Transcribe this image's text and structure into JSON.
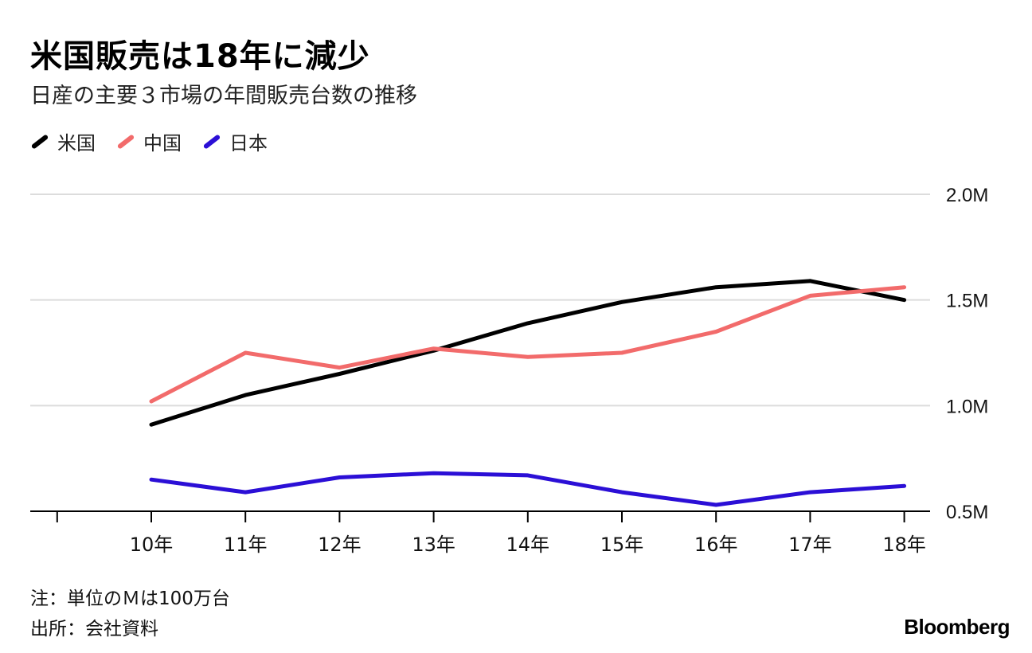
{
  "title": "米国販売は18年に減少",
  "subtitle": "日産の主要３市場の年間販売台数の推移",
  "notes": {
    "unit": "注：単位のＭは100万台",
    "source": "出所：会社資料"
  },
  "brand": "Bloomberg",
  "chart_data": {
    "type": "line",
    "x": [
      "10年",
      "11年",
      "12年",
      "13年",
      "14年",
      "15年",
      "16年",
      "17年",
      "18年"
    ],
    "series": [
      {
        "name": "米国",
        "color": "#000000",
        "values": [
          0.91,
          1.05,
          1.15,
          1.26,
          1.39,
          1.49,
          1.56,
          1.59,
          1.5
        ]
      },
      {
        "name": "中国",
        "color": "#f26b6b",
        "values": [
          1.02,
          1.25,
          1.18,
          1.27,
          1.23,
          1.25,
          1.35,
          1.52,
          1.56
        ]
      },
      {
        "name": "日本",
        "color": "#2b0fd6",
        "values": [
          0.65,
          0.59,
          0.66,
          0.68,
          0.67,
          0.59,
          0.53,
          0.59,
          0.62
        ]
      }
    ],
    "y_ticks": [
      {
        "value": 0.5,
        "label": "0.5M"
      },
      {
        "value": 1.0,
        "label": "1.0M"
      },
      {
        "value": 1.5,
        "label": "1.5M"
      },
      {
        "value": 2.0,
        "label": "2.0M"
      }
    ],
    "ylim": [
      0.5,
      2.0
    ],
    "grid": true,
    "legend": "top-left",
    "y_axis_position": "right"
  }
}
